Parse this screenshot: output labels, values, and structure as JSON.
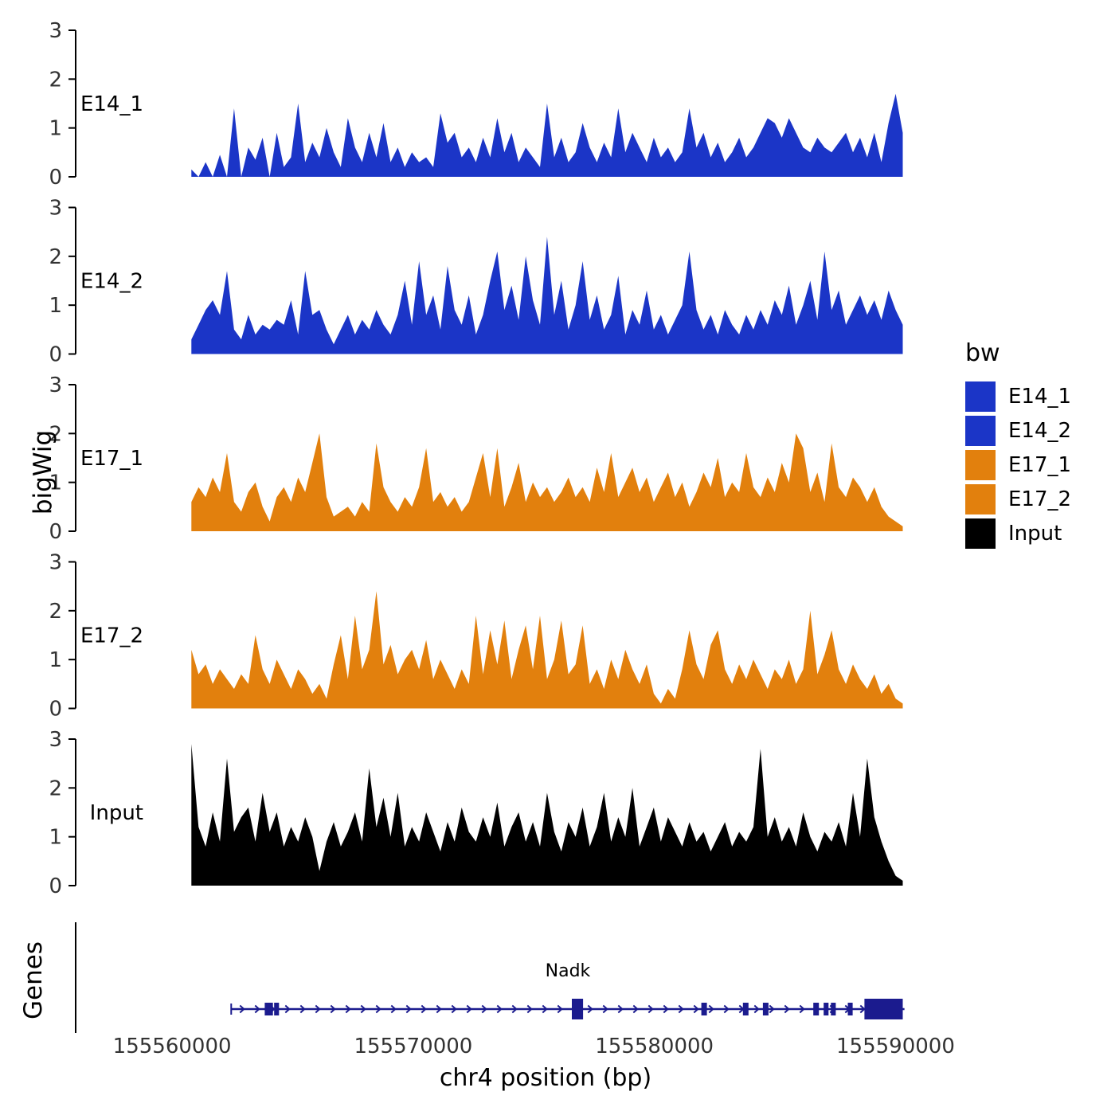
{
  "figure": {
    "y_axis_title": "bigWig",
    "genes_axis_title": "Genes",
    "x_axis_title": "chr4 position (bp)"
  },
  "legend": {
    "title": "bw",
    "items": [
      {
        "label": "E14_1",
        "color": "#1B35C7"
      },
      {
        "label": "E14_2",
        "color": "#1B35C7"
      },
      {
        "label": "E17_1",
        "color": "#E2800D"
      },
      {
        "label": "E17_2",
        "color": "#E2800D"
      },
      {
        "label": "Input",
        "color": "#000000"
      }
    ]
  },
  "chart_data": {
    "type": "area",
    "title": "",
    "xlabel": "chr4 position (bp)",
    "ylabel": "bigWig",
    "x_domain": [
      155556000,
      155592000
    ],
    "x_ticks": [
      155560000,
      155570000,
      155580000,
      155590000
    ],
    "y_ticks": [
      0,
      1,
      2,
      3
    ],
    "ylim": [
      0,
      3
    ],
    "grid": false,
    "legend_position": "right",
    "signal_range": [
      155560800,
      155590300
    ],
    "series": [
      {
        "name": "E14_1",
        "color": "#1B35C7",
        "values": [
          0.15,
          0,
          0.3,
          0,
          0.45,
          0,
          1.4,
          0,
          0.6,
          0.35,
          0.8,
          0,
          0.9,
          0.2,
          0.4,
          1.5,
          0.3,
          0.7,
          0.4,
          1.0,
          0.5,
          0.2,
          1.2,
          0.6,
          0.3,
          0.9,
          0.4,
          1.1,
          0.3,
          0.6,
          0.2,
          0.5,
          0.3,
          0.4,
          0.2,
          1.3,
          0.7,
          0.9,
          0.4,
          0.6,
          0.3,
          0.8,
          0.4,
          1.2,
          0.5,
          0.9,
          0.3,
          0.6,
          0.4,
          0.2,
          1.5,
          0.4,
          0.8,
          0.3,
          0.5,
          1.1,
          0.6,
          0.3,
          0.7,
          0.4,
          1.4,
          0.5,
          0.9,
          0.6,
          0.3,
          0.8,
          0.4,
          0.6,
          0.3,
          0.5,
          1.4,
          0.6,
          0.9,
          0.4,
          0.7,
          0.3,
          0.5,
          0.8,
          0.4,
          0.6,
          0.9,
          1.2,
          1.1,
          0.8,
          1.2,
          0.9,
          0.6,
          0.5,
          0.8,
          0.6,
          0.5,
          0.7,
          0.9,
          0.5,
          0.8,
          0.4,
          0.9,
          0.3,
          1.1,
          1.7,
          0.9
        ]
      },
      {
        "name": "E14_2",
        "color": "#1B35C7",
        "values": [
          0.3,
          0.6,
          0.9,
          1.1,
          0.8,
          1.7,
          0.5,
          0.3,
          0.8,
          0.4,
          0.6,
          0.5,
          0.7,
          0.6,
          1.1,
          0.4,
          1.7,
          0.8,
          0.9,
          0.5,
          0.2,
          0.5,
          0.8,
          0.4,
          0.7,
          0.5,
          0.9,
          0.6,
          0.4,
          0.8,
          1.5,
          0.6,
          1.9,
          0.8,
          1.2,
          0.5,
          1.8,
          0.9,
          0.6,
          1.2,
          0.4,
          0.8,
          1.5,
          2.1,
          0.9,
          1.4,
          0.7,
          2.0,
          1.1,
          0.6,
          2.4,
          0.8,
          1.5,
          0.5,
          1.0,
          1.9,
          0.7,
          1.2,
          0.5,
          0.8,
          1.6,
          0.4,
          0.9,
          0.6,
          1.3,
          0.5,
          0.8,
          0.4,
          0.7,
          1.0,
          2.1,
          0.9,
          0.5,
          0.8,
          0.4,
          0.9,
          0.6,
          0.4,
          0.8,
          0.5,
          0.9,
          0.6,
          1.1,
          0.8,
          1.4,
          0.6,
          1.0,
          1.5,
          0.7,
          2.1,
          0.9,
          1.3,
          0.6,
          0.9,
          1.2,
          0.8,
          1.1,
          0.7,
          1.3,
          0.9,
          0.6
        ]
      },
      {
        "name": "E17_1",
        "color": "#E2800D",
        "values": [
          0.6,
          0.9,
          0.7,
          1.1,
          0.8,
          1.6,
          0.6,
          0.4,
          0.8,
          1.0,
          0.5,
          0.2,
          0.7,
          0.9,
          0.6,
          1.1,
          0.8,
          1.4,
          2.0,
          0.7,
          0.3,
          0.4,
          0.5,
          0.3,
          0.6,
          0.4,
          1.8,
          0.9,
          0.6,
          0.4,
          0.7,
          0.5,
          0.9,
          1.7,
          0.6,
          0.8,
          0.5,
          0.7,
          0.4,
          0.6,
          1.1,
          1.6,
          0.7,
          1.7,
          0.5,
          0.9,
          1.4,
          0.6,
          1.0,
          0.7,
          0.9,
          0.6,
          0.8,
          1.1,
          0.7,
          0.9,
          0.6,
          1.3,
          0.8,
          1.6,
          0.7,
          1.0,
          1.3,
          0.8,
          1.1,
          0.6,
          0.9,
          1.2,
          0.7,
          1.0,
          0.5,
          0.8,
          1.2,
          0.9,
          1.5,
          0.7,
          1.0,
          0.8,
          1.6,
          0.9,
          0.7,
          1.1,
          0.8,
          1.4,
          1.0,
          2.0,
          1.7,
          0.8,
          1.2,
          0.6,
          1.8,
          0.9,
          0.7,
          1.1,
          0.9,
          0.6,
          0.9,
          0.5,
          0.3,
          0.2,
          0.1
        ]
      },
      {
        "name": "E17_2",
        "color": "#E2800D",
        "values": [
          1.2,
          0.7,
          0.9,
          0.5,
          0.8,
          0.6,
          0.4,
          0.7,
          0.5,
          1.5,
          0.8,
          0.5,
          1.0,
          0.7,
          0.4,
          0.8,
          0.6,
          0.3,
          0.5,
          0.2,
          0.9,
          1.5,
          0.6,
          1.9,
          0.8,
          1.2,
          2.4,
          0.9,
          1.3,
          0.7,
          1.0,
          1.2,
          0.8,
          1.4,
          0.6,
          1.0,
          0.7,
          0.4,
          0.8,
          0.5,
          1.9,
          0.7,
          1.6,
          0.9,
          1.8,
          0.6,
          1.2,
          1.7,
          0.8,
          1.9,
          0.6,
          1.0,
          1.8,
          0.7,
          0.9,
          1.7,
          0.5,
          0.8,
          0.4,
          1.0,
          0.6,
          1.2,
          0.8,
          0.5,
          0.9,
          0.3,
          0.1,
          0.4,
          0.2,
          0.8,
          1.6,
          0.9,
          0.6,
          1.3,
          1.6,
          0.8,
          0.5,
          0.9,
          0.6,
          1.0,
          0.7,
          0.4,
          0.8,
          0.6,
          1.0,
          0.5,
          0.8,
          2.0,
          0.7,
          1.1,
          1.6,
          0.8,
          0.5,
          0.9,
          0.6,
          0.4,
          0.7,
          0.3,
          0.5,
          0.2,
          0.1
        ]
      },
      {
        "name": "Input",
        "color": "#000000",
        "values": [
          2.9,
          1.2,
          0.8,
          1.5,
          0.9,
          2.6,
          1.1,
          1.4,
          1.6,
          0.9,
          1.9,
          1.1,
          1.5,
          0.8,
          1.2,
          0.9,
          1.4,
          1.0,
          0.3,
          0.9,
          1.3,
          0.8,
          1.1,
          1.5,
          0.9,
          2.4,
          1.2,
          1.8,
          1.0,
          1.9,
          0.8,
          1.2,
          0.9,
          1.5,
          1.1,
          0.7,
          1.3,
          0.9,
          1.6,
          1.1,
          0.9,
          1.4,
          1.0,
          1.7,
          0.8,
          1.2,
          1.5,
          0.9,
          1.3,
          0.8,
          1.9,
          1.1,
          0.7,
          1.3,
          1.0,
          1.6,
          0.8,
          1.2,
          1.9,
          0.9,
          1.4,
          1.0,
          2.0,
          0.8,
          1.2,
          1.6,
          0.9,
          1.4,
          1.1,
          0.8,
          1.3,
          0.9,
          1.1,
          0.7,
          1.0,
          1.3,
          0.8,
          1.1,
          0.9,
          1.2,
          2.8,
          1.0,
          1.4,
          0.9,
          1.2,
          0.8,
          1.5,
          1.0,
          0.7,
          1.1,
          0.9,
          1.3,
          0.8,
          1.9,
          1.0,
          2.6,
          1.4,
          0.9,
          0.5,
          0.2,
          0.1
        ]
      }
    ],
    "gene_track": {
      "label": "Nadk",
      "color": "#1B1B8E",
      "strand": "+",
      "start": 155562450,
      "end": 155590370,
      "exons": [
        [
          155563840,
          155564180,
          0
        ],
        [
          155564230,
          155564430,
          0
        ],
        [
          155576575,
          155577040,
          1
        ],
        [
          155581945,
          155582175,
          0
        ],
        [
          155583670,
          155583900,
          0
        ],
        [
          155584500,
          155584730,
          0
        ],
        [
          155586590,
          155586820,
          0
        ],
        [
          155587020,
          155587220,
          0
        ],
        [
          155587320,
          155587520,
          0
        ],
        [
          155588020,
          155588220,
          0
        ],
        [
          155588710,
          155590300,
          1
        ]
      ]
    }
  }
}
